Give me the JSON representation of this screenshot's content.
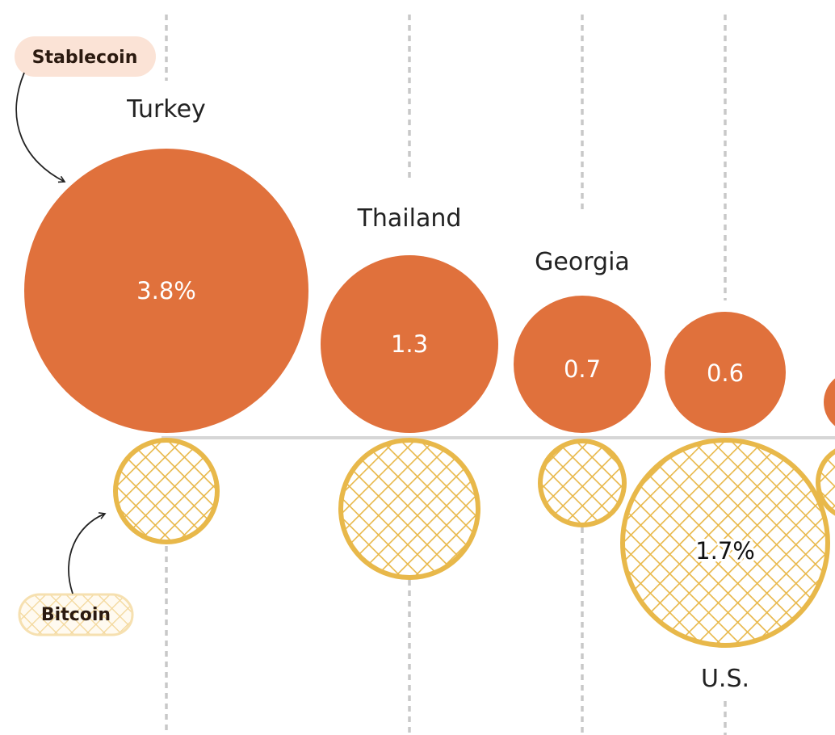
{
  "colors": {
    "stablecoin": "#e0713c",
    "bitcoin": "#e8b84a",
    "stablecoin_pill": "#fbe3d6",
    "bitcoin_pill": "#fbecc9",
    "gridline": "#c8c8c8",
    "baseline": "#d6d6d6",
    "text": "#222222"
  },
  "legend": {
    "stablecoin_label": "Stablecoin",
    "bitcoin_label": "Bitcoin"
  },
  "chart_data": {
    "type": "bubble",
    "title": "",
    "unit": "%",
    "series": [
      {
        "name": "Stablecoin",
        "values": [
          3.8,
          1.3,
          0.7,
          0.6,
          null
        ]
      },
      {
        "name": "Bitcoin",
        "values": [
          null,
          null,
          null,
          1.7,
          null
        ]
      }
    ],
    "countries": [
      {
        "name": "Turkey",
        "stablecoin_label": "3.8%",
        "bitcoin_label": ""
      },
      {
        "name": "Thailand",
        "stablecoin_label": "1.3",
        "bitcoin_label": ""
      },
      {
        "name": "Georgia",
        "stablecoin_label": "0.7",
        "bitcoin_label": ""
      },
      {
        "name": "U.S.",
        "stablecoin_label": "0.6",
        "bitcoin_label": "1.7%"
      },
      {
        "name": "",
        "stablecoin_label": "",
        "bitcoin_label": ""
      }
    ]
  }
}
